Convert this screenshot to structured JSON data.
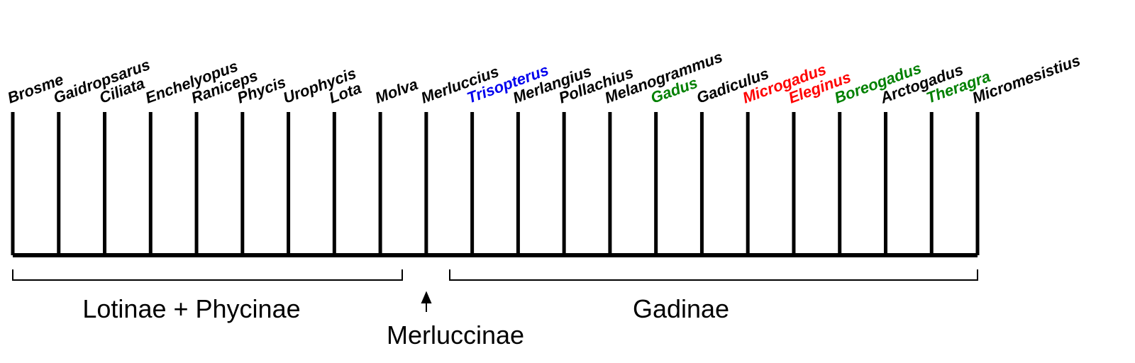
{
  "taxa": [
    {
      "label": "Brosme",
      "color": "#000000"
    },
    {
      "label": "Gaidropsarus",
      "color": "#000000"
    },
    {
      "label": "Ciliata",
      "color": "#000000"
    },
    {
      "label": "Enchelyopus",
      "color": "#000000"
    },
    {
      "label": "Raniceps",
      "color": "#000000"
    },
    {
      "label": "Phycis",
      "color": "#000000"
    },
    {
      "label": "Urophycis",
      "color": "#000000"
    },
    {
      "label": "Lota",
      "color": "#000000"
    },
    {
      "label": "Molva",
      "color": "#000000"
    },
    {
      "label": "Merluccius",
      "color": "#000000"
    },
    {
      "label": "Trisopterus",
      "color": "#0000ee"
    },
    {
      "label": "Merlangius",
      "color": "#000000"
    },
    {
      "label": "Pollachius",
      "color": "#000000"
    },
    {
      "label": "Melanogrammus",
      "color": "#000000"
    },
    {
      "label": "Gadus",
      "color": "#008000"
    },
    {
      "label": "Gadiculus",
      "color": "#000000"
    },
    {
      "label": "Microgadus",
      "color": "#ff0000"
    },
    {
      "label": "Eleginus",
      "color": "#ff0000"
    },
    {
      "label": "Boreogadus",
      "color": "#008000"
    },
    {
      "label": "Arctogadus",
      "color": "#000000"
    },
    {
      "label": "Theragra",
      "color": "#008000"
    },
    {
      "label": "Micromesistius",
      "color": "#000000"
    }
  ],
  "groups": {
    "lotinae_phycinae": "Lotinae + Phycinae",
    "merluccinae": "Merluccinae",
    "gadinae": "Gadinae"
  }
}
